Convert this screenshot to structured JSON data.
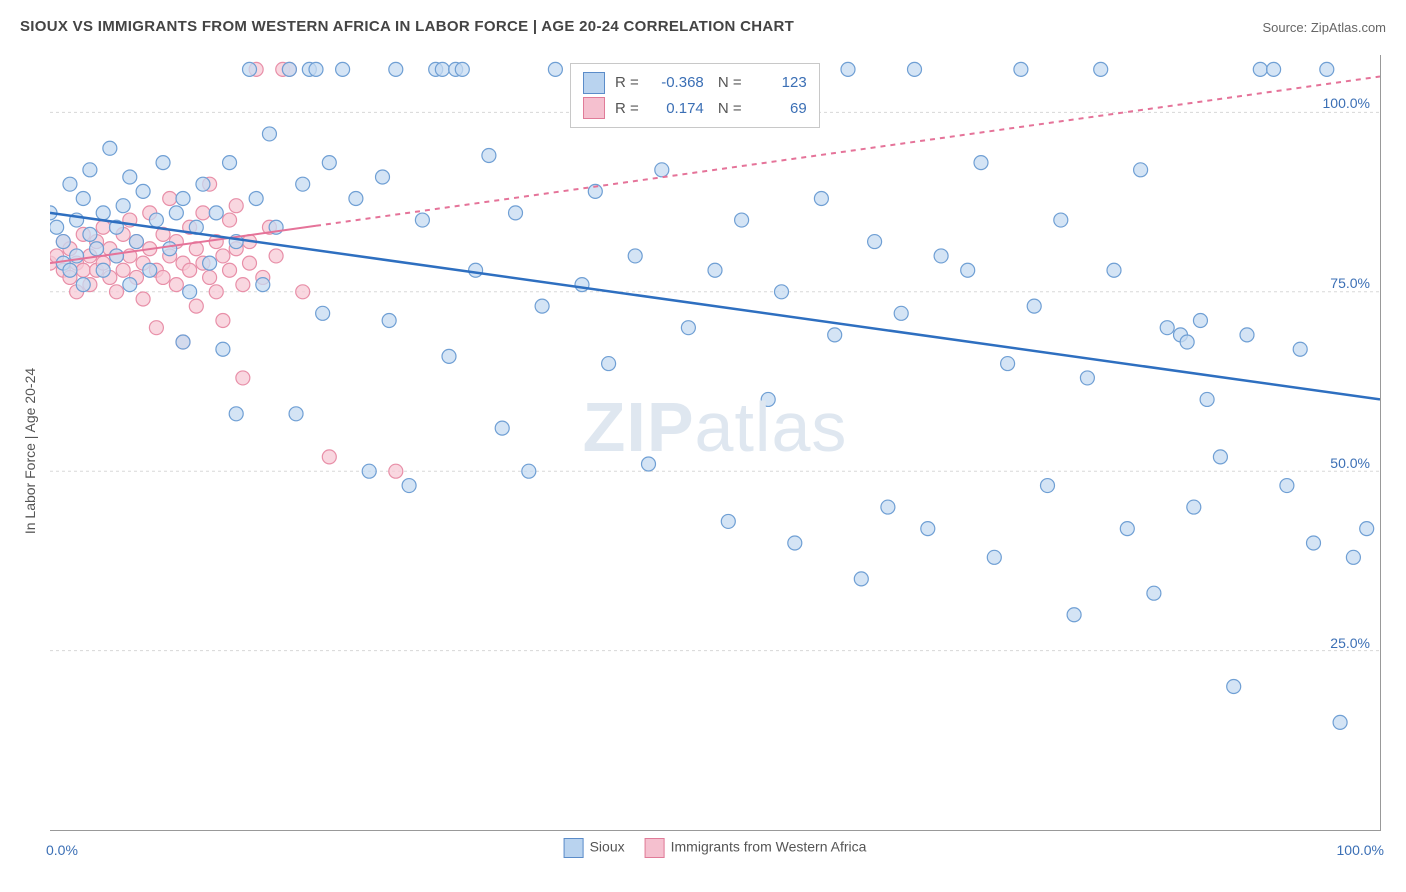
{
  "title": "SIOUX VS IMMIGRANTS FROM WESTERN AFRICA IN LABOR FORCE | AGE 20-24 CORRELATION CHART",
  "source": "Source: ZipAtlas.com",
  "ylabel": "In Labor Force | Age 20-24",
  "watermark_bold": "ZIP",
  "watermark_rest": "atlas",
  "chart": {
    "type": "scatter",
    "xlim": [
      0,
      100
    ],
    "ylim": [
      0,
      108
    ],
    "xtick_major": [
      0,
      100
    ],
    "xtick_minor": [
      16.67,
      33.33,
      50,
      66.67,
      83.33
    ],
    "ytick_major": [
      25,
      50,
      75,
      100
    ],
    "ytick_labels": [
      "25.0%",
      "50.0%",
      "75.0%",
      "100.0%"
    ],
    "xtick_labels_major": [
      "0.0%",
      "100.0%"
    ],
    "grid_color": "#d8d8d8",
    "axis_color": "#999999",
    "background": "#ffffff",
    "series": [
      {
        "name": "Sioux",
        "fill": "#c5dbf2",
        "stroke": "#6f9fd4",
        "legend_fill": "#b9d3ef",
        "legend_stroke": "#5b8cc9",
        "line_color": "#2e6fc0",
        "line_width": 2.5,
        "line_dash": "none",
        "marker_r": 7,
        "marker_opacity": 0.75,
        "R": "-0.368",
        "N": "123",
        "trend": {
          "x1": 0,
          "y1": 86,
          "x2": 100,
          "y2": 60
        },
        "points": [
          [
            0,
            86
          ],
          [
            0.5,
            84
          ],
          [
            1,
            82
          ],
          [
            1,
            79
          ],
          [
            1.5,
            90
          ],
          [
            1.5,
            78
          ],
          [
            2,
            85
          ],
          [
            2,
            80
          ],
          [
            2.5,
            88
          ],
          [
            2.5,
            76
          ],
          [
            3,
            83
          ],
          [
            3,
            92
          ],
          [
            3.5,
            81
          ],
          [
            4,
            86
          ],
          [
            4,
            78
          ],
          [
            4.5,
            95
          ],
          [
            5,
            84
          ],
          [
            5,
            80
          ],
          [
            5.5,
            87
          ],
          [
            6,
            91
          ],
          [
            6,
            76
          ],
          [
            6.5,
            82
          ],
          [
            7,
            89
          ],
          [
            7.5,
            78
          ],
          [
            8,
            85
          ],
          [
            8.5,
            93
          ],
          [
            9,
            81
          ],
          [
            9.5,
            86
          ],
          [
            10,
            88
          ],
          [
            10,
            68
          ],
          [
            10.5,
            75
          ],
          [
            11,
            84
          ],
          [
            11.5,
            90
          ],
          [
            12,
            79
          ],
          [
            12.5,
            86
          ],
          [
            13,
            67
          ],
          [
            13.5,
            93
          ],
          [
            14,
            82
          ],
          [
            14,
            58
          ],
          [
            15,
            106
          ],
          [
            15.5,
            88
          ],
          [
            16,
            76
          ],
          [
            16.5,
            97
          ],
          [
            17,
            84
          ],
          [
            18,
            106
          ],
          [
            18.5,
            58
          ],
          [
            19,
            90
          ],
          [
            19.5,
            106
          ],
          [
            20,
            106
          ],
          [
            20.5,
            72
          ],
          [
            21,
            93
          ],
          [
            22,
            106
          ],
          [
            23,
            88
          ],
          [
            24,
            50
          ],
          [
            25,
            91
          ],
          [
            25.5,
            71
          ],
          [
            26,
            106
          ],
          [
            27,
            48
          ],
          [
            28,
            85
          ],
          [
            29,
            106
          ],
          [
            29.5,
            106
          ],
          [
            30,
            66
          ],
          [
            30.5,
            106
          ],
          [
            31,
            106
          ],
          [
            32,
            78
          ],
          [
            33,
            94
          ],
          [
            34,
            56
          ],
          [
            35,
            86
          ],
          [
            36,
            50
          ],
          [
            37,
            73
          ],
          [
            38,
            106
          ],
          [
            40,
            76
          ],
          [
            41,
            89
          ],
          [
            42,
            65
          ],
          [
            44,
            80
          ],
          [
            45,
            51
          ],
          [
            46,
            92
          ],
          [
            48,
            70
          ],
          [
            50,
            78
          ],
          [
            51,
            43
          ],
          [
            52,
            85
          ],
          [
            54,
            60
          ],
          [
            55,
            75
          ],
          [
            56,
            40
          ],
          [
            58,
            88
          ],
          [
            59,
            69
          ],
          [
            60,
            106
          ],
          [
            61,
            35
          ],
          [
            62,
            82
          ],
          [
            63,
            45
          ],
          [
            64,
            72
          ],
          [
            65,
            106
          ],
          [
            66,
            42
          ],
          [
            67,
            80
          ],
          [
            69,
            78
          ],
          [
            70,
            93
          ],
          [
            71,
            38
          ],
          [
            72,
            65
          ],
          [
            73,
            106
          ],
          [
            74,
            73
          ],
          [
            75,
            48
          ],
          [
            76,
            85
          ],
          [
            77,
            30
          ],
          [
            78,
            63
          ],
          [
            79,
            106
          ],
          [
            80,
            78
          ],
          [
            81,
            42
          ],
          [
            82,
            92
          ],
          [
            83,
            33
          ],
          [
            84,
            70
          ],
          [
            85,
            69
          ],
          [
            85.5,
            68
          ],
          [
            86,
            45
          ],
          [
            86.5,
            71
          ],
          [
            87,
            60
          ],
          [
            88,
            52
          ],
          [
            89,
            20
          ],
          [
            90,
            69
          ],
          [
            91,
            106
          ],
          [
            92,
            106
          ],
          [
            93,
            48
          ],
          [
            94,
            67
          ],
          [
            95,
            40
          ],
          [
            96,
            106
          ],
          [
            97,
            15
          ],
          [
            98,
            38
          ],
          [
            99,
            42
          ]
        ]
      },
      {
        "name": "Immigrants from Western Africa",
        "fill": "#f7cad6",
        "stroke": "#e88fa8",
        "legend_fill": "#f5c0cf",
        "legend_stroke": "#e07b98",
        "line_color": "#e57399",
        "line_width": 2,
        "line_dash_solid_until_x": 20,
        "line_dash": "5,5",
        "marker_r": 7,
        "marker_opacity": 0.75,
        "R": "0.174",
        "N": "69",
        "trend": {
          "x1": 0,
          "y1": 79,
          "x2": 100,
          "y2": 105
        },
        "points": [
          [
            0,
            79
          ],
          [
            0.5,
            80
          ],
          [
            1,
            78
          ],
          [
            1,
            82
          ],
          [
            1.5,
            77
          ],
          [
            1.5,
            81
          ],
          [
            2,
            79
          ],
          [
            2,
            75
          ],
          [
            2.5,
            83
          ],
          [
            2.5,
            78
          ],
          [
            3,
            80
          ],
          [
            3,
            76
          ],
          [
            3.5,
            82
          ],
          [
            3.5,
            78
          ],
          [
            4,
            79
          ],
          [
            4,
            84
          ],
          [
            4.5,
            77
          ],
          [
            4.5,
            81
          ],
          [
            5,
            80
          ],
          [
            5,
            75
          ],
          [
            5.5,
            83
          ],
          [
            5.5,
            78
          ],
          [
            6,
            80
          ],
          [
            6,
            85
          ],
          [
            6.5,
            77
          ],
          [
            6.5,
            82
          ],
          [
            7,
            79
          ],
          [
            7,
            74
          ],
          [
            7.5,
            81
          ],
          [
            7.5,
            86
          ],
          [
            8,
            78
          ],
          [
            8,
            70
          ],
          [
            8.5,
            83
          ],
          [
            8.5,
            77
          ],
          [
            9,
            80
          ],
          [
            9,
            88
          ],
          [
            9.5,
            76
          ],
          [
            9.5,
            82
          ],
          [
            10,
            79
          ],
          [
            10,
            68
          ],
          [
            10.5,
            84
          ],
          [
            10.5,
            78
          ],
          [
            11,
            81
          ],
          [
            11,
            73
          ],
          [
            11.5,
            86
          ],
          [
            11.5,
            79
          ],
          [
            12,
            77
          ],
          [
            12,
            90
          ],
          [
            12.5,
            82
          ],
          [
            12.5,
            75
          ],
          [
            13,
            80
          ],
          [
            13,
            71
          ],
          [
            13.5,
            85
          ],
          [
            13.5,
            78
          ],
          [
            14,
            81
          ],
          [
            14,
            87
          ],
          [
            14.5,
            76
          ],
          [
            14.5,
            63
          ],
          [
            15,
            82
          ],
          [
            15,
            79
          ],
          [
            15.5,
            106
          ],
          [
            16,
            77
          ],
          [
            16.5,
            84
          ],
          [
            17,
            80
          ],
          [
            17.5,
            106
          ],
          [
            18,
            106
          ],
          [
            19,
            75
          ],
          [
            21,
            52
          ],
          [
            26,
            50
          ]
        ]
      }
    ]
  },
  "legend_main": [
    {
      "label": "Sioux",
      "fill": "#b9d3ef",
      "stroke": "#5b8cc9"
    },
    {
      "label": "Immigrants from Western Africa",
      "fill": "#f5c0cf",
      "stroke": "#e07b98"
    }
  ]
}
